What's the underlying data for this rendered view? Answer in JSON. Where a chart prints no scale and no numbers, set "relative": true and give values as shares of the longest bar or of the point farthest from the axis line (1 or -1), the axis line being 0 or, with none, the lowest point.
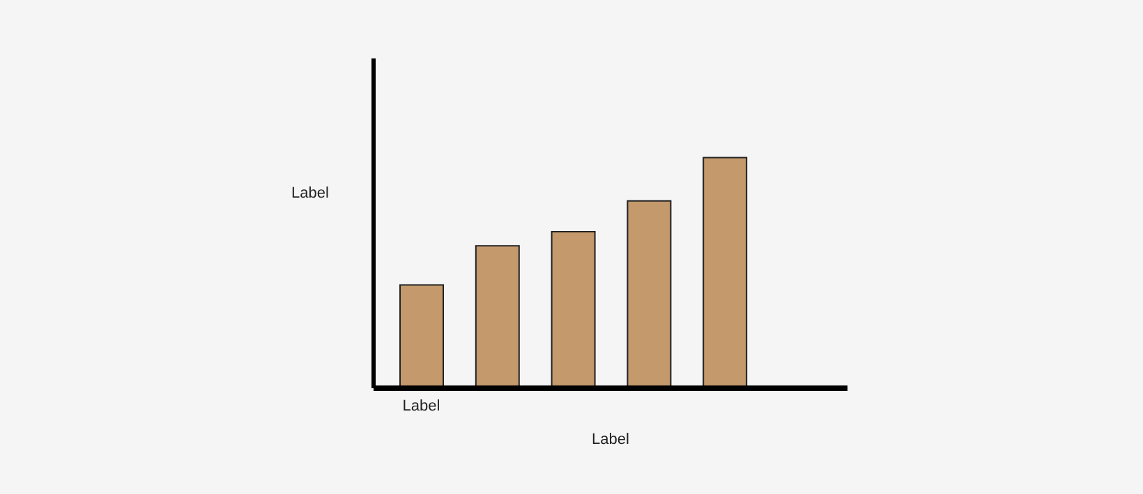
{
  "chart_data": {
    "type": "bar",
    "relative": true,
    "xlabel": "Label",
    "ylabel": "Label",
    "categories": [
      "Label",
      null,
      null,
      null,
      null
    ],
    "values": [
      0.448,
      0.618,
      0.679,
      0.812,
      1
    ],
    "color": "#c4996c",
    "grid": false,
    "legend": false
  }
}
